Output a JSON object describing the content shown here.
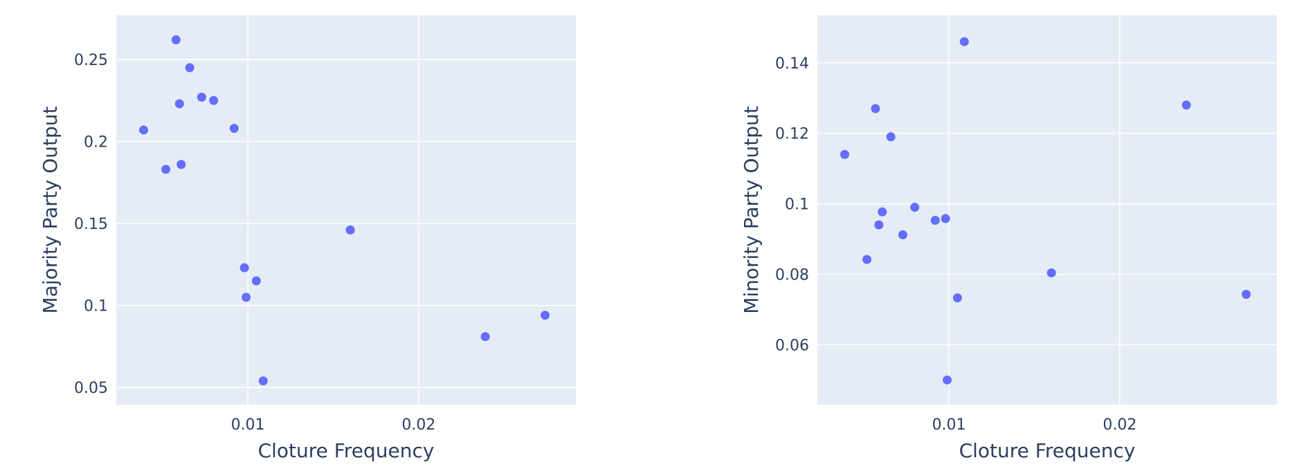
{
  "chart_data": [
    {
      "type": "scatter",
      "title": "",
      "xlabel": "Cloture Frequency",
      "ylabel": "Majority Party Output",
      "xlim": [
        0.0023,
        0.0292
      ],
      "ylim": [
        0.0395,
        0.277
      ],
      "xticks": [
        {
          "value": 0.01,
          "label": "0.01"
        },
        {
          "value": 0.02,
          "label": "0.02"
        }
      ],
      "yticks": [
        {
          "value": 0.05,
          "label": "0.05"
        },
        {
          "value": 0.1,
          "label": "0.1"
        },
        {
          "value": 0.15,
          "label": "0.15"
        },
        {
          "value": 0.2,
          "label": "0.2"
        },
        {
          "value": 0.25,
          "label": "0.25"
        }
      ],
      "marker_color": "#636efa",
      "series": [
        {
          "points": [
            {
              "x": 0.0058,
              "y": 0.262
            },
            {
              "x": 0.0066,
              "y": 0.245
            },
            {
              "x": 0.0073,
              "y": 0.227
            },
            {
              "x": 0.008,
              "y": 0.225
            },
            {
              "x": 0.006,
              "y": 0.223
            },
            {
              "x": 0.0092,
              "y": 0.208
            },
            {
              "x": 0.0039,
              "y": 0.207
            },
            {
              "x": 0.0061,
              "y": 0.186
            },
            {
              "x": 0.0052,
              "y": 0.183
            },
            {
              "x": 0.016,
              "y": 0.146
            },
            {
              "x": 0.0098,
              "y": 0.123
            },
            {
              "x": 0.0105,
              "y": 0.115
            },
            {
              "x": 0.0099,
              "y": 0.105
            },
            {
              "x": 0.0274,
              "y": 0.094
            },
            {
              "x": 0.0239,
              "y": 0.081
            },
            {
              "x": 0.0109,
              "y": 0.054
            }
          ]
        }
      ]
    },
    {
      "type": "scatter",
      "title": "",
      "xlabel": "Cloture Frequency",
      "ylabel": "Minority Party Output",
      "xlim": [
        0.0023,
        0.0292
      ],
      "ylim": [
        0.043,
        0.1535
      ],
      "xticks": [
        {
          "value": 0.01,
          "label": "0.01"
        },
        {
          "value": 0.02,
          "label": "0.02"
        }
      ],
      "yticks": [
        {
          "value": 0.06,
          "label": "0.06"
        },
        {
          "value": 0.08,
          "label": "0.08"
        },
        {
          "value": 0.1,
          "label": "0.1"
        },
        {
          "value": 0.12,
          "label": "0.12"
        },
        {
          "value": 0.14,
          "label": "0.14"
        }
      ],
      "marker_color": "#636efa",
      "series": [
        {
          "points": [
            {
              "x": 0.0109,
              "y": 0.146
            },
            {
              "x": 0.0057,
              "y": 0.127
            },
            {
              "x": 0.0239,
              "y": 0.128
            },
            {
              "x": 0.0066,
              "y": 0.119
            },
            {
              "x": 0.0039,
              "y": 0.114
            },
            {
              "x": 0.008,
              "y": 0.099
            },
            {
              "x": 0.0061,
              "y": 0.0977
            },
            {
              "x": 0.0098,
              "y": 0.0958
            },
            {
              "x": 0.0092,
              "y": 0.0953
            },
            {
              "x": 0.0059,
              "y": 0.094
            },
            {
              "x": 0.0073,
              "y": 0.0912
            },
            {
              "x": 0.0052,
              "y": 0.0842
            },
            {
              "x": 0.016,
              "y": 0.0804
            },
            {
              "x": 0.0274,
              "y": 0.0743
            },
            {
              "x": 0.0105,
              "y": 0.0733
            },
            {
              "x": 0.0099,
              "y": 0.05
            }
          ]
        }
      ]
    }
  ]
}
